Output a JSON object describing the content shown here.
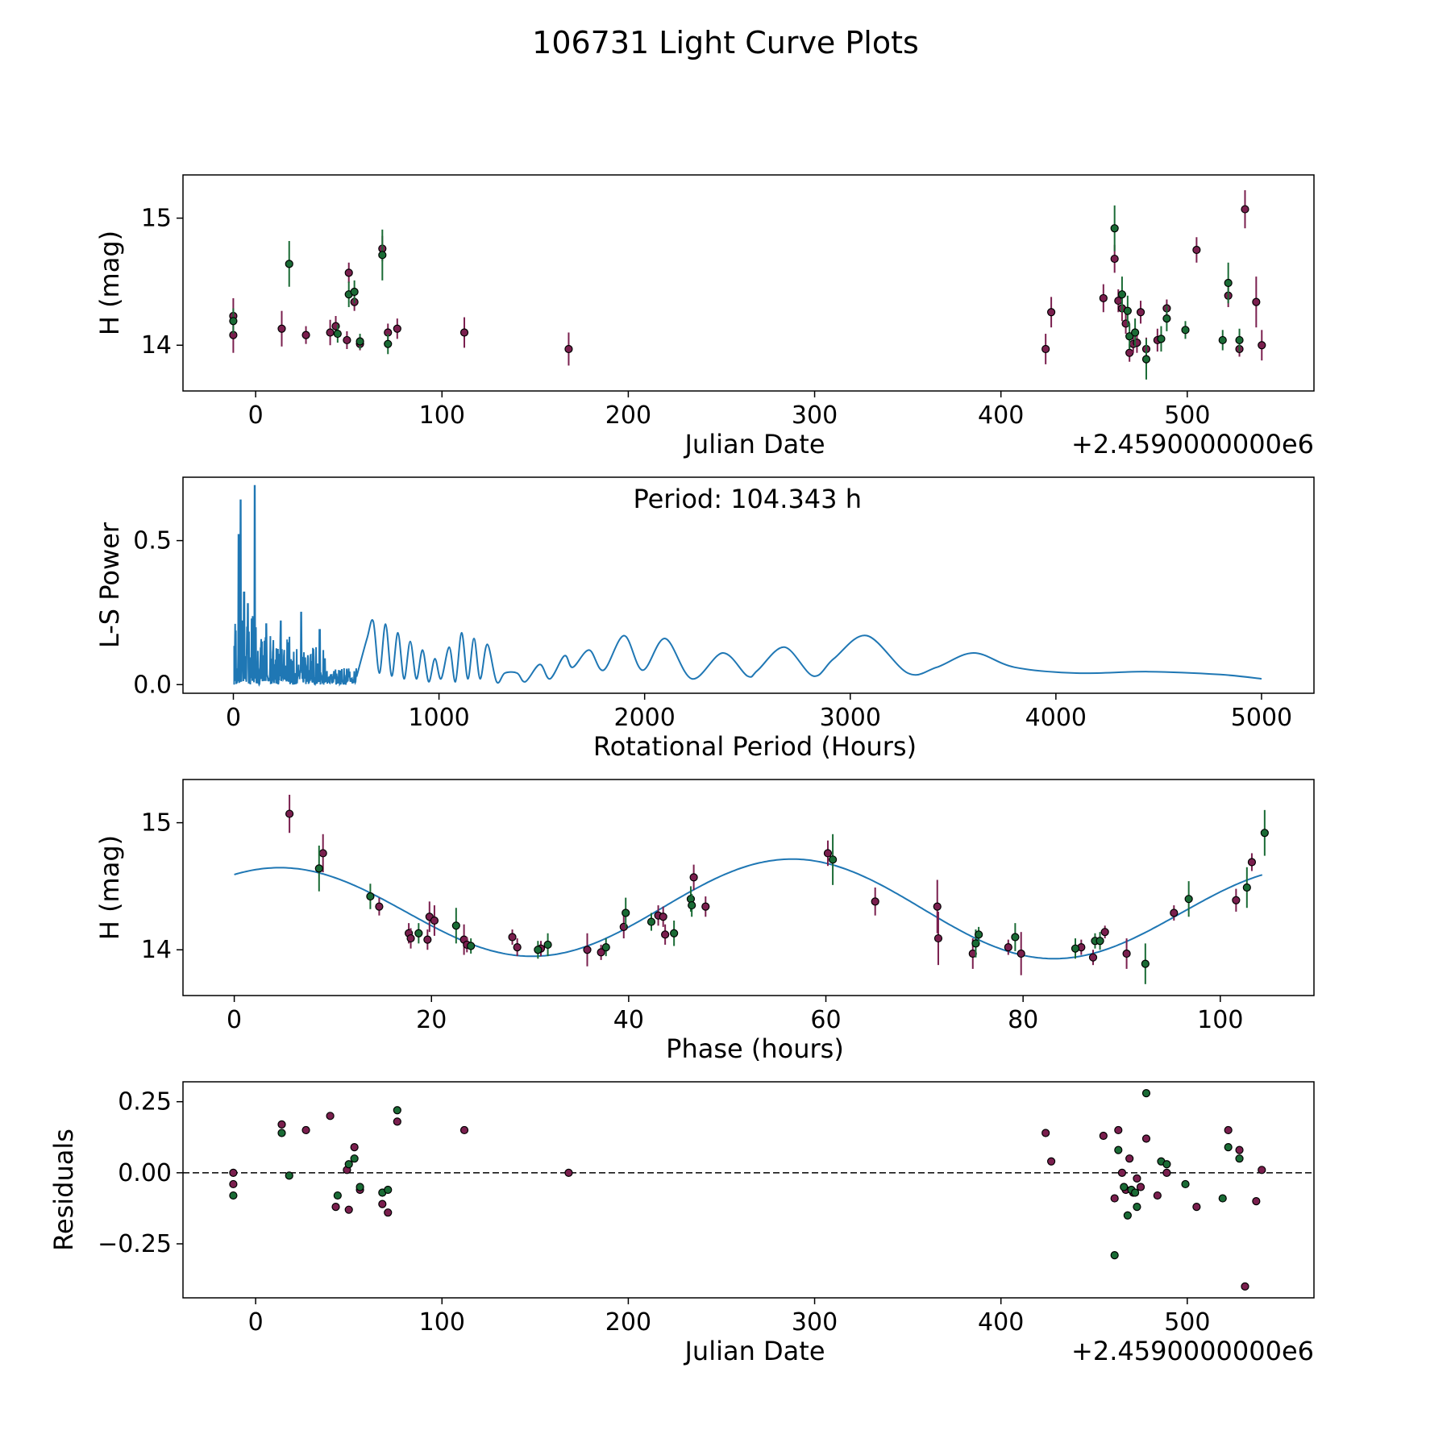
{
  "title": "106731 Light Curve Plots",
  "colors": {
    "magenta": "#7a1f4e",
    "green": "#1a6b35",
    "fit": "#1f77b4",
    "axis": "#000000"
  },
  "chart_data": [
    {
      "type": "scatter",
      "ylabel": "H (mag)",
      "xlabel": "Julian Date",
      "offset_label": "+2.4590000000e6",
      "xlim": [
        -39,
        568
      ],
      "ylim": [
        13.64,
        15.34
      ],
      "xticks": [
        0,
        100,
        200,
        300,
        400,
        500
      ],
      "yticks": [
        14,
        15
      ],
      "series": [
        {
          "name": "magenta",
          "points": [
            [
              -12,
              14.23,
              0.14
            ],
            [
              -12,
              14.08,
              0.14
            ],
            [
              14,
              14.13,
              0.14
            ],
            [
              27,
              14.08,
              0.07
            ],
            [
              40,
              14.1,
              0.1
            ],
            [
              43,
              14.15,
              0.08
            ],
            [
              49,
              14.04,
              0.07
            ],
            [
              50,
              14.57,
              0.08
            ],
            [
              53,
              14.34,
              0.07
            ],
            [
              56,
              14.01,
              0.05
            ],
            [
              68,
              14.76,
              0.1
            ],
            [
              71,
              14.1,
              0.07
            ],
            [
              76,
              14.13,
              0.08
            ],
            [
              112,
              14.1,
              0.12
            ],
            [
              168,
              13.97,
              0.13
            ],
            [
              424,
              13.97,
              0.12
            ],
            [
              427,
              14.26,
              0.12
            ],
            [
              455,
              14.37,
              0.11
            ],
            [
              461,
              14.68,
              0.11
            ],
            [
              463,
              14.35,
              0.09
            ],
            [
              465,
              14.29,
              0.1
            ],
            [
              467,
              14.17,
              0.08
            ],
            [
              469,
              13.94,
              0.07
            ],
            [
              471,
              14.01,
              0.07
            ],
            [
              473,
              14.02,
              0.08
            ],
            [
              475,
              14.26,
              0.09
            ],
            [
              478,
              13.97,
              0.09
            ],
            [
              484,
              14.04,
              0.09
            ],
            [
              489,
              14.29,
              0.07
            ],
            [
              505,
              14.75,
              0.1
            ],
            [
              522,
              14.39,
              0.09
            ],
            [
              528,
              13.97,
              0.06
            ],
            [
              531,
              15.07,
              0.15
            ],
            [
              537,
              14.34,
              0.2
            ],
            [
              540,
              14.0,
              0.12
            ]
          ]
        },
        {
          "name": "green",
          "points": [
            [
              -12,
              14.19,
              0.1
            ],
            [
              18,
              14.64,
              0.18
            ],
            [
              44,
              14.09,
              0.07
            ],
            [
              50,
              14.4,
              0.1
            ],
            [
              53,
              14.42,
              0.09
            ],
            [
              56,
              14.03,
              0.06
            ],
            [
              68,
              14.71,
              0.2
            ],
            [
              71,
              14.01,
              0.08
            ],
            [
              461,
              14.92,
              0.18
            ],
            [
              465,
              14.4,
              0.14
            ],
            [
              468,
              14.27,
              0.12
            ],
            [
              469,
              14.07,
              0.1
            ],
            [
              472,
              14.1,
              0.11
            ],
            [
              478,
              13.89,
              0.16
            ],
            [
              486,
              14.05,
              0.1
            ],
            [
              489,
              14.21,
              0.1
            ],
            [
              499,
              14.12,
              0.07
            ],
            [
              519,
              14.04,
              0.08
            ],
            [
              522,
              14.49,
              0.16
            ],
            [
              528,
              14.04,
              0.09
            ]
          ]
        }
      ]
    },
    {
      "type": "line",
      "ylabel": "L-S Power",
      "xlabel": "Rotational Period (Hours)",
      "annotation": "Period: 104.343 h",
      "xlim": [
        -245,
        5255
      ],
      "ylim": [
        -0.03,
        0.72
      ],
      "xticks": [
        0,
        1000,
        2000,
        3000,
        4000,
        5000
      ],
      "yticks": [
        0.0,
        0.5
      ],
      "ytick_labels": [
        "0.0",
        "0.5"
      ],
      "peaks": [
        [
          25,
          0.52
        ],
        [
          35,
          0.64
        ],
        [
          52,
          0.32
        ],
        [
          70,
          0.28
        ],
        [
          104,
          0.69
        ],
        [
          160,
          0.21
        ],
        [
          230,
          0.22
        ],
        [
          330,
          0.25
        ],
        [
          420,
          0.19
        ]
      ],
      "smooth": [
        [
          600,
          0.03
        ],
        [
          650,
          0.16
        ],
        [
          680,
          0.22
        ],
        [
          710,
          0.04
        ],
        [
          740,
          0.21
        ],
        [
          770,
          0.03
        ],
        [
          800,
          0.18
        ],
        [
          830,
          0.02
        ],
        [
          860,
          0.15
        ],
        [
          890,
          0.02
        ],
        [
          920,
          0.12
        ],
        [
          950,
          0.01
        ],
        [
          980,
          0.09
        ],
        [
          1010,
          0.02
        ],
        [
          1050,
          0.13
        ],
        [
          1080,
          0.01
        ],
        [
          1110,
          0.18
        ],
        [
          1140,
          0.02
        ],
        [
          1170,
          0.16
        ],
        [
          1200,
          0.02
        ],
        [
          1235,
          0.14
        ],
        [
          1280,
          0.01
        ],
        [
          1320,
          0.04
        ],
        [
          1380,
          0.04
        ],
        [
          1420,
          0.01
        ],
        [
          1490,
          0.07
        ],
        [
          1540,
          0.02
        ],
        [
          1610,
          0.1
        ],
        [
          1650,
          0.06
        ],
        [
          1730,
          0.12
        ],
        [
          1800,
          0.05
        ],
        [
          1900,
          0.17
        ],
        [
          1990,
          0.05
        ],
        [
          2100,
          0.16
        ],
        [
          2230,
          0.02
        ],
        [
          2380,
          0.11
        ],
        [
          2500,
          0.03
        ],
        [
          2550,
          0.05
        ],
        [
          2680,
          0.13
        ],
        [
          2820,
          0.03
        ],
        [
          2920,
          0.09
        ],
        [
          3080,
          0.17
        ],
        [
          3280,
          0.04
        ],
        [
          3420,
          0.06
        ],
        [
          3600,
          0.11
        ],
        [
          3800,
          0.06
        ],
        [
          4100,
          0.04
        ],
        [
          4450,
          0.045
        ],
        [
          4800,
          0.035
        ],
        [
          5000,
          0.02
        ]
      ]
    },
    {
      "type": "scatter",
      "ylabel": "H (mag)",
      "xlabel": "Phase (hours)",
      "xlim": [
        -5.2,
        109.5
      ],
      "ylim": [
        13.64,
        15.34
      ],
      "xticks": [
        0,
        20,
        40,
        60,
        80,
        100
      ],
      "yticks": [
        14,
        15
      ],
      "fit": {
        "period": 104.343,
        "mean": 14.31,
        "amp1": 0.37,
        "phase1": 4.5,
        "amp2": 0.035,
        "phase2": 52.17
      },
      "series": [
        {
          "name": "magenta",
          "points": [
            [
              5.6,
              15.07,
              0.15
            ],
            [
              9,
              14.76,
              0.15
            ],
            [
              14.7,
              14.34,
              0.07
            ],
            [
              17.7,
              14.13,
              0.08
            ],
            [
              17.9,
              14.09,
              0.08
            ],
            [
              19.6,
              14.08,
              0.08
            ],
            [
              19.8,
              14.26,
              0.12
            ],
            [
              20.3,
              14.23,
              0.12
            ],
            [
              23.3,
              14.08,
              0.12
            ],
            [
              23.6,
              14.04,
              0.06
            ],
            [
              28.2,
              14.1,
              0.06
            ],
            [
              28.7,
              14.02,
              0.07
            ],
            [
              31.1,
              14.01,
              0.06
            ],
            [
              35.8,
              14.0,
              0.13
            ],
            [
              37.2,
              13.98,
              0.06
            ],
            [
              39.5,
              14.18,
              0.09
            ],
            [
              43,
              14.27,
              0.08
            ],
            [
              43.5,
              14.26,
              0.08
            ],
            [
              43.7,
              14.12,
              0.08
            ],
            [
              46.6,
              14.57,
              0.1
            ],
            [
              47.8,
              14.34,
              0.08
            ],
            [
              60.2,
              14.76,
              0.1
            ],
            [
              65,
              14.38,
              0.11
            ],
            [
              71.3,
              14.34,
              0.21
            ],
            [
              71.4,
              14.09,
              0.21
            ],
            [
              74.9,
              13.97,
              0.12
            ],
            [
              78.5,
              14.02,
              0.06
            ],
            [
              79.8,
              13.97,
              0.17
            ],
            [
              85.9,
              14.02,
              0.06
            ],
            [
              87.1,
              13.94,
              0.06
            ],
            [
              88.3,
              14.14,
              0.05
            ],
            [
              90.5,
              13.97,
              0.12
            ],
            [
              95.3,
              14.29,
              0.06
            ],
            [
              101.6,
              14.39,
              0.09
            ],
            [
              103.2,
              14.69,
              0.07
            ]
          ]
        },
        {
          "name": "green",
          "points": [
            [
              8.6,
              14.64,
              0.18
            ],
            [
              13.8,
              14.42,
              0.1
            ],
            [
              18.7,
              14.13,
              0.08
            ],
            [
              22.5,
              14.19,
              0.14
            ],
            [
              24,
              14.03,
              0.06
            ],
            [
              30.8,
              14.0,
              0.07
            ],
            [
              31.8,
              14.04,
              0.09
            ],
            [
              37.7,
              14.02,
              0.07
            ],
            [
              39.7,
              14.29,
              0.12
            ],
            [
              42.3,
              14.22,
              0.07
            ],
            [
              44.6,
              14.13,
              0.1
            ],
            [
              46.3,
              14.4,
              0.1
            ],
            [
              46.4,
              14.35,
              0.09
            ],
            [
              60.7,
              14.71,
              0.2
            ],
            [
              75.2,
              14.05,
              0.11
            ],
            [
              75.5,
              14.12,
              0.06
            ],
            [
              79.2,
              14.1,
              0.11
            ],
            [
              85.3,
              14.01,
              0.08
            ],
            [
              87.3,
              14.07,
              0.06
            ],
            [
              87.8,
              14.07,
              0.07
            ],
            [
              92.4,
              13.89,
              0.16
            ],
            [
              96.8,
              14.4,
              0.14
            ],
            [
              102.7,
              14.49,
              0.16
            ],
            [
              104.5,
              14.92,
              0.18
            ]
          ]
        }
      ]
    },
    {
      "type": "scatter",
      "ylabel": "Residuals",
      "xlabel": "Julian Date",
      "offset_label": "+2.4590000000e6",
      "xlim": [
        -39,
        568
      ],
      "ylim": [
        -0.44,
        0.32
      ],
      "xticks": [
        0,
        100,
        200,
        300,
        400,
        500
      ],
      "yticks": [
        -0.25,
        0.0,
        0.25
      ],
      "ytick_labels": [
        "−0.25",
        "0.00",
        "0.25"
      ],
      "hline": 0,
      "series": [
        {
          "name": "magenta",
          "points": [
            [
              -12,
              0.0
            ],
            [
              -12,
              -0.04
            ],
            [
              14,
              0.17
            ],
            [
              27,
              0.15
            ],
            [
              40,
              0.2
            ],
            [
              43,
              -0.12
            ],
            [
              49,
              0.01
            ],
            [
              50,
              -0.13
            ],
            [
              53,
              0.09
            ],
            [
              56,
              -0.06
            ],
            [
              68,
              -0.11
            ],
            [
              71,
              -0.14
            ],
            [
              76,
              0.18
            ],
            [
              112,
              0.15
            ],
            [
              168,
              0.0
            ],
            [
              424,
              0.14
            ],
            [
              427,
              0.04
            ],
            [
              455,
              0.13
            ],
            [
              461,
              -0.09
            ],
            [
              463,
              0.15
            ],
            [
              465,
              0.0
            ],
            [
              467,
              -0.06
            ],
            [
              469,
              0.05
            ],
            [
              471,
              -0.07
            ],
            [
              473,
              -0.02
            ],
            [
              475,
              -0.05
            ],
            [
              478,
              0.12
            ],
            [
              484,
              -0.08
            ],
            [
              489,
              0.0
            ],
            [
              505,
              -0.12
            ],
            [
              522,
              0.15
            ],
            [
              528,
              0.08
            ],
            [
              531,
              -0.4
            ],
            [
              537,
              -0.1
            ],
            [
              540,
              0.01
            ]
          ]
        },
        {
          "name": "green",
          "points": [
            [
              -12,
              -0.08
            ],
            [
              14,
              0.14
            ],
            [
              18,
              -0.01
            ],
            [
              44,
              -0.08
            ],
            [
              50,
              0.03
            ],
            [
              53,
              0.05
            ],
            [
              56,
              -0.05
            ],
            [
              68,
              -0.07
            ],
            [
              71,
              -0.06
            ],
            [
              76,
              0.22
            ],
            [
              461,
              -0.29
            ],
            [
              463,
              0.08
            ],
            [
              466,
              -0.05
            ],
            [
              468,
              -0.15
            ],
            [
              470,
              -0.06
            ],
            [
              472,
              -0.07
            ],
            [
              473,
              -0.12
            ],
            [
              478,
              0.28
            ],
            [
              486,
              0.04
            ],
            [
              489,
              0.03
            ],
            [
              499,
              -0.04
            ],
            [
              519,
              -0.09
            ],
            [
              522,
              0.09
            ],
            [
              528,
              0.05
            ]
          ]
        }
      ]
    }
  ]
}
